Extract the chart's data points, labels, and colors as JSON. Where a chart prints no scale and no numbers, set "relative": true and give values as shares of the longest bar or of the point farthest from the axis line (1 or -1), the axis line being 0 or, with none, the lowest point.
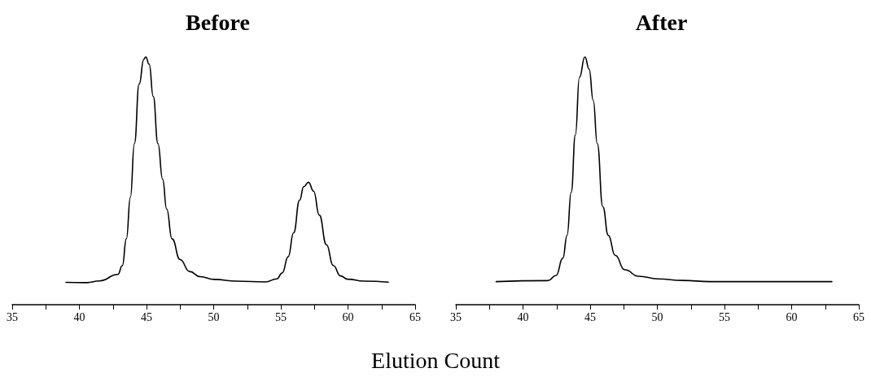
{
  "chart_data": [
    {
      "type": "line",
      "title": "Before",
      "relative": true,
      "xlabel": "Elution Count",
      "xlim": [
        35,
        65
      ],
      "xticks": [
        35,
        {
          "value": 37.5,
          "label": null
        },
        40,
        {
          "value": 42.5,
          "label": null
        },
        45,
        {
          "value": 47.5,
          "label": null
        },
        50,
        {
          "value": 52.5,
          "label": null
        },
        55,
        {
          "value": 57.5,
          "label": null
        },
        60,
        {
          "value": 62.5,
          "label": null
        },
        65
      ],
      "grid": false,
      "marker": "none",
      "line_style": "solid",
      "series": [
        {
          "color": "#000000",
          "x": [
            39.0,
            40.55,
            41.5,
            42.87,
            43.2,
            43.5,
            43.8,
            44.1,
            44.45,
            44.8,
            44.94,
            45.2,
            45.5,
            45.85,
            46.2,
            46.5,
            46.9,
            47.5,
            48.2,
            49.0,
            50.05,
            51.7,
            53.85,
            54.7,
            55.1,
            55.55,
            55.95,
            56.4,
            56.7,
            57.06,
            57.44,
            57.86,
            58.4,
            58.9,
            59.45,
            59.97,
            61.2,
            63.0
          ],
          "values": [
            0.09,
            0.089,
            0.096,
            0.122,
            0.158,
            0.266,
            0.434,
            0.65,
            0.89,
            0.99,
            1,
            0.97,
            0.84,
            0.65,
            0.506,
            0.386,
            0.266,
            0.182,
            0.134,
            0.113,
            0.102,
            0.095,
            0.092,
            0.104,
            0.128,
            0.194,
            0.29,
            0.422,
            0.476,
            0.494,
            0.458,
            0.362,
            0.242,
            0.158,
            0.116,
            0.103,
            0.095,
            0.091
          ]
        }
      ]
    },
    {
      "type": "line",
      "title": "After",
      "relative": true,
      "xlim": [
        35,
        65
      ],
      "xticks": [
        35,
        {
          "value": 37.5,
          "label": null
        },
        40,
        {
          "value": 42.5,
          "label": null
        },
        45,
        {
          "value": 47.5,
          "label": null
        },
        50,
        {
          "value": 52.5,
          "label": null
        },
        55,
        {
          "value": 57.5,
          "label": null
        },
        60,
        {
          "value": 62.5,
          "label": null
        },
        65
      ],
      "grid": false,
      "marker": "none",
      "line_style": "solid",
      "series": [
        {
          "color": "#000000",
          "x": [
            38.0,
            41.85,
            42.46,
            42.97,
            43.28,
            43.59,
            43.9,
            44.2,
            44.61,
            44.92,
            45.23,
            45.53,
            45.94,
            46.35,
            46.86,
            47.58,
            48.6,
            50.04,
            51.89,
            53.93,
            58.03,
            63.0
          ],
          "values": [
            0.093,
            0.097,
            0.118,
            0.188,
            0.28,
            0.454,
            0.685,
            0.917,
            1,
            0.951,
            0.824,
            0.65,
            0.396,
            0.28,
            0.199,
            0.141,
            0.115,
            0.104,
            0.098,
            0.093,
            0.093,
            0.093
          ]
        }
      ]
    }
  ]
}
